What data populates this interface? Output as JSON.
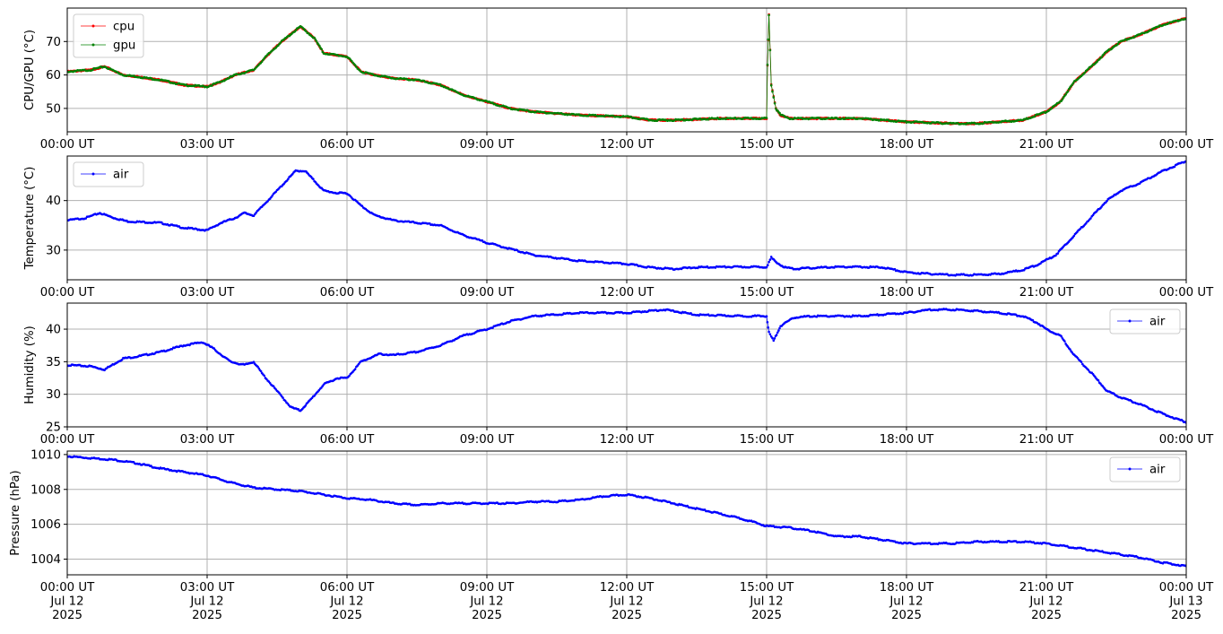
{
  "chart_data": [
    {
      "type": "line",
      "ylabel": "CPU/GPU (°C)",
      "ylim": [
        43,
        80
      ],
      "yticks": [
        50,
        60,
        70
      ],
      "xlim": [
        0,
        24
      ],
      "x_tick_labels": [
        "00:00 UT",
        "03:00 UT",
        "06:00 UT",
        "09:00 UT",
        "12:00 UT",
        "15:00 UT",
        "18:00 UT",
        "21:00 UT",
        "00:00 UT"
      ],
      "grid": true,
      "legend": "upper left",
      "series": [
        {
          "name": "cpu",
          "color": "#ff0000",
          "x": [
            0,
            0.5,
            0.8,
            1.2,
            1.5,
            2.0,
            2.5,
            3.0,
            3.3,
            3.6,
            4.0,
            4.3,
            4.6,
            5.0,
            5.3,
            5.5,
            6.0,
            6.3,
            6.6,
            7.0,
            7.5,
            8.0,
            8.5,
            9.0,
            9.5,
            10.0,
            11.0,
            12.0,
            12.5,
            13.0,
            14.0,
            15.0,
            15.02,
            15.05,
            15.1,
            15.2,
            15.3,
            15.5,
            16.0,
            17.0,
            18.0,
            19.0,
            19.5,
            20.0,
            20.5,
            21.0,
            21.3,
            21.6,
            22.0,
            22.3,
            22.6,
            23.0,
            23.5,
            24.0
          ],
          "y": [
            61,
            61.5,
            62.5,
            60,
            59.5,
            58.5,
            57,
            56.5,
            58,
            60,
            61.5,
            66,
            70,
            74.5,
            71,
            66.5,
            65.5,
            61,
            60,
            59,
            58.5,
            57,
            54,
            52,
            50,
            49,
            48,
            47.5,
            46.5,
            46.5,
            47,
            47,
            63,
            78,
            57,
            50,
            48,
            47,
            47,
            47,
            46,
            45.5,
            45.5,
            46,
            46.5,
            49,
            52,
            58,
            63,
            67,
            70,
            72,
            75,
            77
          ]
        },
        {
          "name": "gpu",
          "color": "#008000",
          "x": [
            0,
            0.5,
            0.8,
            1.2,
            1.5,
            2.0,
            2.5,
            3.0,
            3.3,
            3.6,
            4.0,
            4.3,
            4.6,
            5.0,
            5.3,
            5.5,
            6.0,
            6.3,
            6.6,
            7.0,
            7.5,
            8.0,
            8.5,
            9.0,
            9.5,
            10.0,
            11.0,
            12.0,
            12.5,
            13.0,
            14.0,
            15.0,
            15.02,
            15.05,
            15.1,
            15.2,
            15.3,
            15.5,
            16.0,
            17.0,
            18.0,
            19.0,
            19.5,
            20.0,
            20.5,
            21.0,
            21.3,
            21.6,
            22.0,
            22.3,
            22.6,
            23.0,
            23.5,
            24.0
          ],
          "y": [
            61,
            61.5,
            62.5,
            60,
            59.5,
            58.5,
            57,
            56.5,
            58,
            60,
            61.5,
            66,
            70,
            74.5,
            71,
            66.5,
            65.5,
            61,
            60,
            59,
            58.5,
            57,
            54,
            52,
            50,
            49,
            48,
            47.5,
            46.5,
            46.5,
            47,
            47,
            63,
            78,
            57,
            50,
            48,
            47,
            47,
            47,
            46,
            45.5,
            45.5,
            46,
            46.5,
            49,
            52,
            58,
            63,
            67,
            70,
            72,
            75,
            77
          ]
        }
      ]
    },
    {
      "type": "line",
      "ylabel": "Temperature (°C)",
      "ylim": [
        24,
        49
      ],
      "yticks": [
        30,
        40
      ],
      "xlim": [
        0,
        24
      ],
      "x_tick_labels": [
        "00:00 UT",
        "03:00 UT",
        "06:00 UT",
        "09:00 UT",
        "12:00 UT",
        "15:00 UT",
        "18:00 UT",
        "21:00 UT",
        "00:00 UT"
      ],
      "grid": true,
      "legend": "upper left",
      "series": [
        {
          "name": "air",
          "color": "#0000ff",
          "x": [
            0,
            0.4,
            0.7,
            1.0,
            1.3,
            2.0,
            2.5,
            3.0,
            3.3,
            3.6,
            3.8,
            4.0,
            4.3,
            4.6,
            4.9,
            5.1,
            5.3,
            5.5,
            5.8,
            6.0,
            6.3,
            6.6,
            7.0,
            7.5,
            8.0,
            8.5,
            9.0,
            10.0,
            11.0,
            12.0,
            12.5,
            13.0,
            13.5,
            14.0,
            15.0,
            15.1,
            15.2,
            15.4,
            15.6,
            16.0,
            16.5,
            17.0,
            17.5,
            18.0,
            18.5,
            19.0,
            19.5,
            20.0,
            20.5,
            20.8,
            21.0,
            21.2,
            21.5,
            21.8,
            22.0,
            22.3,
            22.6,
            23.0,
            23.5,
            24.0
          ],
          "y": [
            36,
            36.5,
            37.5,
            36.5,
            35.8,
            35.5,
            34.5,
            34,
            35.5,
            36.5,
            37.5,
            37,
            40,
            43,
            46,
            46,
            44,
            42,
            41.5,
            41.5,
            39,
            37,
            36,
            35.5,
            35,
            33,
            31.5,
            29,
            27.8,
            27.2,
            26.5,
            26.2,
            26.5,
            26.6,
            26.6,
            28.5,
            27.5,
            26.5,
            26.2,
            26.4,
            26.6,
            26.6,
            26.5,
            25.5,
            25.2,
            25,
            25,
            25.2,
            26,
            27,
            28,
            29,
            32,
            35,
            37,
            40,
            42,
            43.5,
            46,
            48
          ]
        }
      ]
    },
    {
      "type": "line",
      "ylabel": "Humidity (%)",
      "ylim": [
        25,
        44
      ],
      "yticks": [
        25,
        30,
        35,
        40
      ],
      "xlim": [
        0,
        24
      ],
      "x_tick_labels": [
        "00:00 UT",
        "03:00 UT",
        "06:00 UT",
        "09:00 UT",
        "12:00 UT",
        "15:00 UT",
        "18:00 UT",
        "21:00 UT",
        "00:00 UT"
      ],
      "grid": true,
      "legend": "upper right",
      "series": [
        {
          "name": "air",
          "color": "#0000ff",
          "x": [
            0,
            0.5,
            0.8,
            1.2,
            1.5,
            2.0,
            2.5,
            2.9,
            3.1,
            3.5,
            3.8,
            4.0,
            4.2,
            4.5,
            4.8,
            5.0,
            5.2,
            5.5,
            5.8,
            6.0,
            6.3,
            6.7,
            7.0,
            7.5,
            8.0,
            8.5,
            9.0,
            9.5,
            10.0,
            11.0,
            12.0,
            12.8,
            13.5,
            14.5,
            15.0,
            15.05,
            15.15,
            15.3,
            15.6,
            16.0,
            17.0,
            18.0,
            18.5,
            19.0,
            19.5,
            20.0,
            20.5,
            20.8,
            21.0,
            21.3,
            21.6,
            22.0,
            22.3,
            22.6,
            23.0,
            23.5,
            24.0
          ],
          "y": [
            34.5,
            34.3,
            33.8,
            35.5,
            35.8,
            36.5,
            37.5,
            38,
            37.2,
            35,
            34.5,
            35,
            33,
            30.5,
            28,
            27.5,
            29,
            31.5,
            32.5,
            32.5,
            35,
            36.2,
            36,
            36.5,
            37.5,
            39,
            40,
            41.2,
            42,
            42.5,
            42.5,
            43,
            42.2,
            42,
            42,
            39.5,
            38.2,
            40.5,
            41.8,
            42,
            42,
            42.5,
            43,
            43,
            42.8,
            42.5,
            42,
            41,
            40,
            39,
            36,
            33,
            30.5,
            29.5,
            28.5,
            27,
            25.7
          ]
        }
      ]
    },
    {
      "type": "line",
      "ylabel": "Pressure (hPa)",
      "ylim": [
        1003.1,
        1010.2
      ],
      "yticks": [
        1004,
        1006,
        1008,
        1010
      ],
      "xlim": [
        0,
        24
      ],
      "x_tick_labels": [
        "00:00 UT\nJul 12\n2025",
        "03:00 UT\nJul 12\n2025",
        "06:00 UT\nJul 12\n2025",
        "09:00 UT\nJul 12\n2025",
        "12:00 UT\nJul 12\n2025",
        "15:00 UT\nJul 12\n2025",
        "18:00 UT\nJul 12\n2025",
        "21:00 UT\nJul 12\n2025",
        "00:00 UT\nJul 13\n2025"
      ],
      "grid": true,
      "legend": "upper right",
      "series": [
        {
          "name": "air",
          "color": "#0000ff",
          "x": [
            0,
            0.5,
            1.0,
            1.5,
            2.0,
            2.5,
            3.0,
            3.5,
            4.0,
            4.5,
            5.0,
            5.5,
            6.0,
            6.5,
            7.0,
            7.5,
            8.0,
            8.5,
            9.0,
            9.5,
            10.0,
            10.5,
            11.0,
            11.5,
            12.0,
            12.5,
            13.0,
            13.5,
            14.0,
            14.5,
            15.0,
            15.5,
            16.0,
            16.5,
            17.0,
            17.5,
            18.0,
            18.5,
            19.0,
            19.5,
            20.0,
            20.5,
            21.0,
            21.5,
            22.0,
            22.5,
            23.0,
            23.5,
            24.0
          ],
          "y": [
            1009.9,
            1009.8,
            1009.7,
            1009.5,
            1009.2,
            1009.0,
            1008.8,
            1008.4,
            1008.1,
            1008.0,
            1007.9,
            1007.7,
            1007.5,
            1007.4,
            1007.2,
            1007.1,
            1007.2,
            1007.2,
            1007.2,
            1007.2,
            1007.3,
            1007.3,
            1007.4,
            1007.6,
            1007.7,
            1007.5,
            1007.2,
            1006.9,
            1006.6,
            1006.3,
            1005.9,
            1005.8,
            1005.6,
            1005.3,
            1005.3,
            1005.1,
            1004.9,
            1004.9,
            1004.9,
            1005.0,
            1005.0,
            1005.0,
            1004.9,
            1004.7,
            1004.5,
            1004.3,
            1004.1,
            1003.8,
            1003.6
          ]
        }
      ]
    }
  ]
}
